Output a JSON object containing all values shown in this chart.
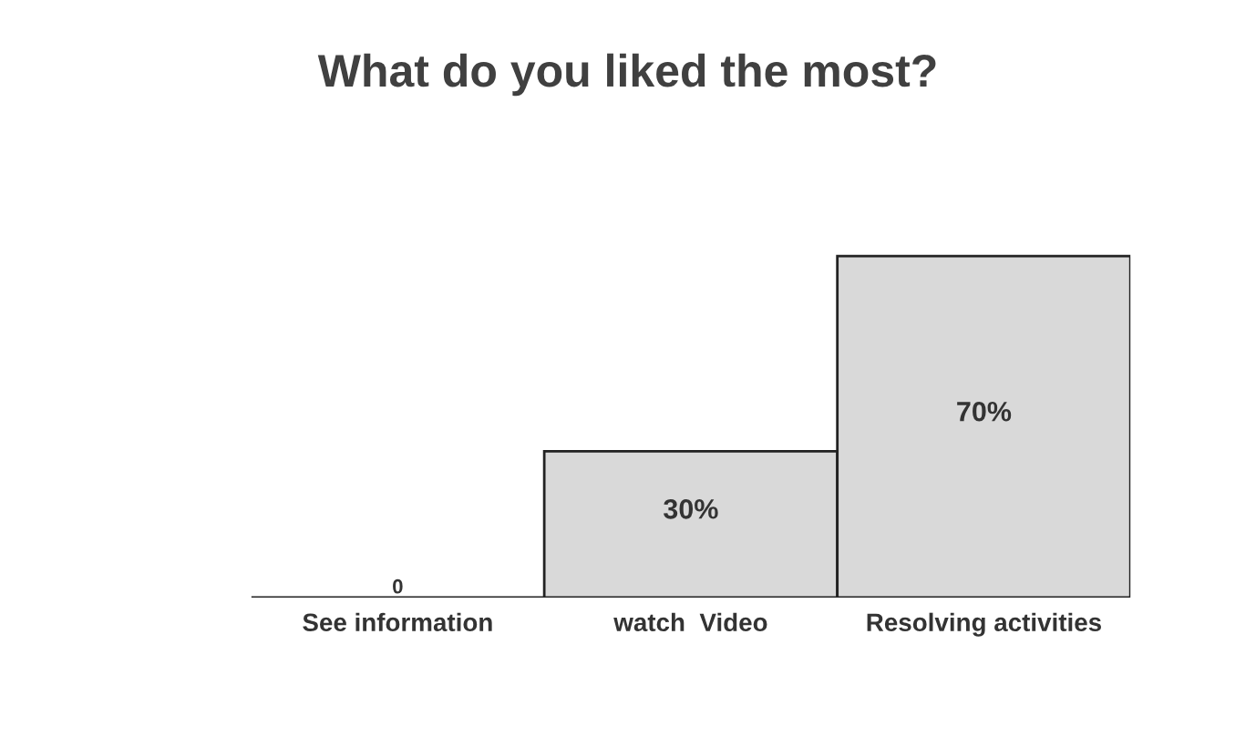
{
  "chart_data": {
    "type": "bar",
    "title": "What do you liked the most?",
    "categories": [
      "See information",
      "watch  Video",
      "Resolving activities"
    ],
    "values": [
      0,
      30,
      70
    ],
    "value_labels": [
      "0",
      "30%",
      "70%"
    ],
    "colors": [
      "#a6a6a6",
      "#d9d9d9",
      "#d9d9d9"
    ]
  }
}
